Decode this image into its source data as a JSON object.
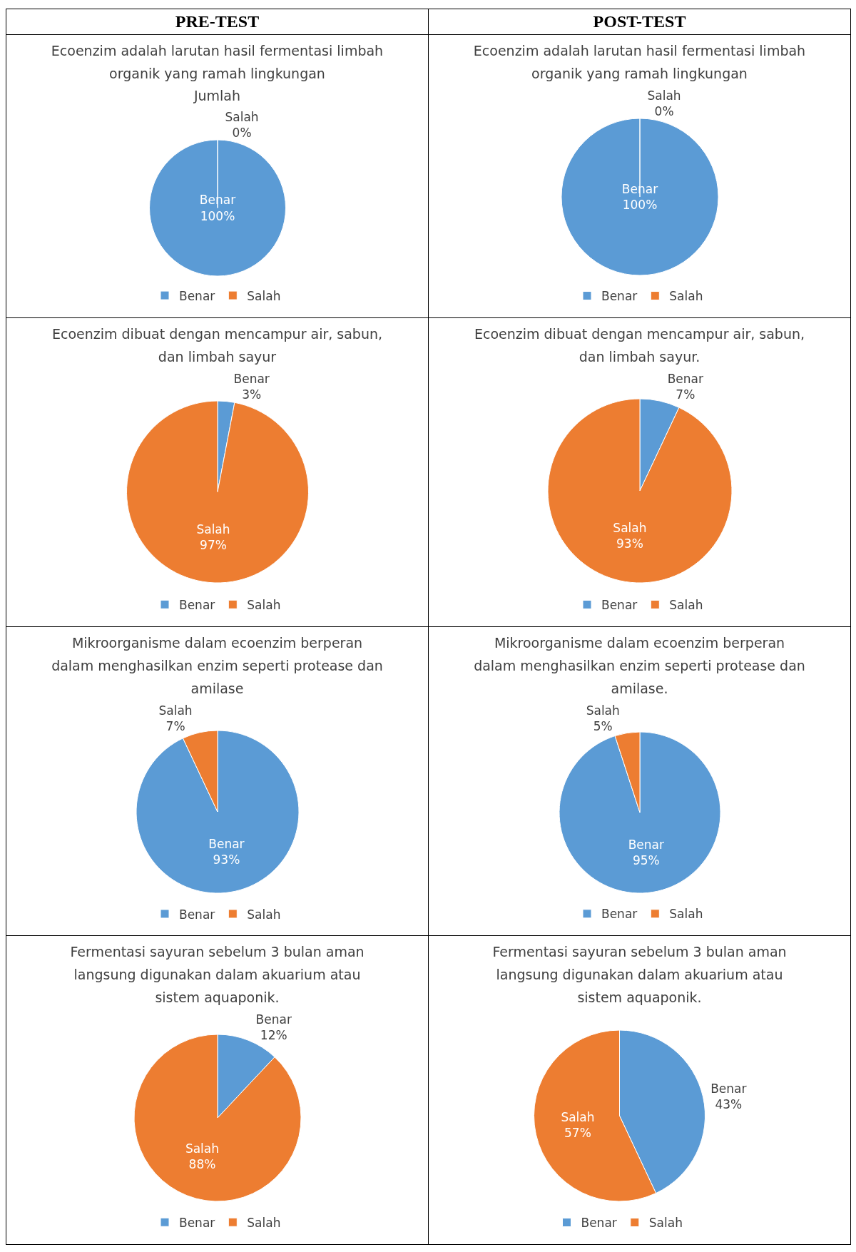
{
  "chart_data": [
    {
      "type": "pie",
      "annotations": [
        "PRE-TEST"
      ],
      "title": "Ecoenzim adalah larutan hasil fermentasi limbah organik yang ramah lingkungan",
      "subtitle": "Jumlah",
      "categories": [
        "Benar",
        "Salah"
      ],
      "values": [
        100,
        0
      ],
      "value_labels": [
        "100%",
        "0%"
      ],
      "colors": [
        "#5b9bd5",
        "#ed7d31"
      ],
      "legend": "bottom"
    },
    {
      "type": "pie",
      "annotations": [
        "POST-TEST"
      ],
      "title": "Ecoenzim adalah larutan hasil fermentasi limbah organik yang ramah lingkungan",
      "categories": [
        "Benar",
        "Salah"
      ],
      "values": [
        100,
        0
      ],
      "value_labels": [
        "100%",
        "0%"
      ],
      "colors": [
        "#5b9bd5",
        "#ed7d31"
      ],
      "legend": "bottom"
    },
    {
      "type": "pie",
      "title": "Ecoenzim dibuat dengan mencampur air, sabun, dan limbah sayur",
      "categories": [
        "Benar",
        "Salah"
      ],
      "values": [
        3,
        97
      ],
      "value_labels": [
        "3%",
        "97%"
      ],
      "colors": [
        "#5b9bd5",
        "#ed7d31"
      ],
      "legend": "bottom"
    },
    {
      "type": "pie",
      "title": "Ecoenzim dibuat dengan mencampur air, sabun, dan limbah sayur.",
      "categories": [
        "Benar",
        "Salah"
      ],
      "values": [
        7,
        93
      ],
      "value_labels": [
        "7%",
        "93%"
      ],
      "colors": [
        "#5b9bd5",
        "#ed7d31"
      ],
      "legend": "bottom"
    },
    {
      "type": "pie",
      "title": "Mikroorganisme dalam ecoenzim berperan dalam menghasilkan enzim seperti protease dan amilase",
      "categories": [
        "Benar",
        "Salah"
      ],
      "values": [
        93,
        7
      ],
      "value_labels": [
        "93%",
        "7%"
      ],
      "colors": [
        "#5b9bd5",
        "#ed7d31"
      ],
      "legend": "bottom"
    },
    {
      "type": "pie",
      "title": "Mikroorganisme dalam ecoenzim berperan dalam menghasilkan enzim seperti protease dan amilase.",
      "categories": [
        "Benar",
        "Salah"
      ],
      "values": [
        95,
        5
      ],
      "value_labels": [
        "95%",
        "5%"
      ],
      "colors": [
        "#5b9bd5",
        "#ed7d31"
      ],
      "legend": "bottom"
    },
    {
      "type": "pie",
      "title": "Fermentasi sayuran sebelum 3 bulan aman langsung digunakan dalam akuarium atau sistem aquaponik.",
      "categories": [
        "Benar",
        "Salah"
      ],
      "values": [
        12,
        88
      ],
      "value_labels": [
        "12%",
        "88%"
      ],
      "colors": [
        "#5b9bd5",
        "#ed7d31"
      ],
      "legend": "bottom"
    },
    {
      "type": "pie",
      "title": "Fermentasi sayuran sebelum 3 bulan aman langsung digunakan dalam akuarium atau sistem aquaponik.",
      "categories": [
        "Benar",
        "Salah"
      ],
      "values": [
        43,
        57
      ],
      "value_labels": [
        "43%",
        "57%"
      ],
      "colors": [
        "#5b9bd5",
        "#ed7d31"
      ],
      "legend": "bottom"
    }
  ]
}
